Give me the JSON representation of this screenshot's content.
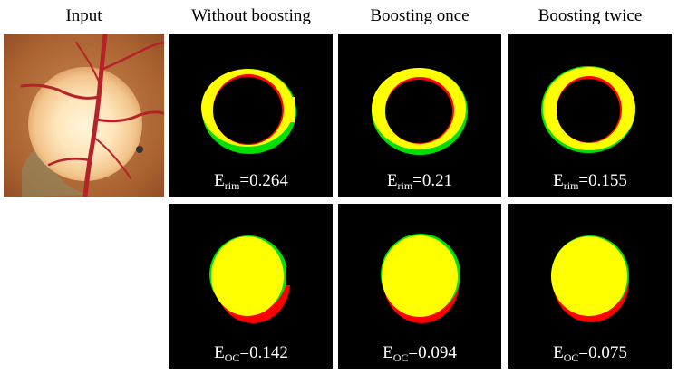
{
  "columns": {
    "input": "Input",
    "without": "Without boosting",
    "once": "Boosting once",
    "twice": "Boosting twice"
  },
  "metrics": {
    "rim": [
      {
        "symbol": "E",
        "sub": "rim",
        "value": "=0.264"
      },
      {
        "symbol": "E",
        "sub": "rim",
        "value": "=0.21"
      },
      {
        "symbol": "E",
        "sub": "rim",
        "value": "=0.155"
      }
    ],
    "oc": [
      {
        "symbol": "E",
        "sub": "OC",
        "value": "=0.142"
      },
      {
        "symbol": "E",
        "sub": "OC",
        "value": "=0.094"
      },
      {
        "symbol": "E",
        "sub": "OC",
        "value": "=0.075"
      }
    ]
  },
  "colors": {
    "overlap": "#ffff00",
    "ground_truth_only": "#00e000",
    "prediction_only": "#ff0000",
    "background": "#000000"
  }
}
